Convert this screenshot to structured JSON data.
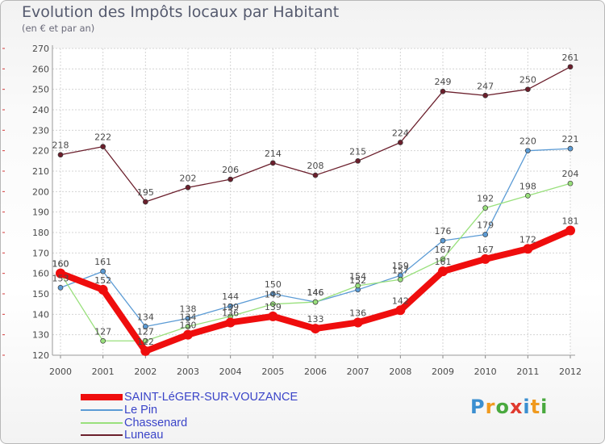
{
  "header": {
    "title": "Evolution des Impôts locaux par Habitant",
    "subtitle": "(en € et par an)"
  },
  "logo": {
    "letters": [
      "P",
      "r",
      "o",
      "x",
      "i",
      "t",
      "i"
    ],
    "colors": [
      "#3b8fd0",
      "#f09a1f",
      "#49a93e",
      "#e03a2f",
      "#3b8fd0",
      "#f09a1f",
      "#49a93e"
    ]
  },
  "chart_data": {
    "type": "line",
    "title": "Evolution des Impôts locaux par Habitant",
    "subtitle": "(en € et par an)",
    "xlabel": "",
    "ylabel": "",
    "ylim": [
      120,
      270
    ],
    "yticks": [
      120,
      130,
      140,
      150,
      160,
      170,
      180,
      190,
      200,
      210,
      220,
      230,
      240,
      250,
      260,
      270
    ],
    "categories": [
      "2000",
      "2001",
      "2002",
      "2003",
      "2004",
      "2005",
      "2006",
      "2007",
      "2008",
      "2009",
      "2010",
      "2011",
      "2012"
    ],
    "grid": true,
    "legend_position": "bottom-left",
    "series": [
      {
        "name": "Luneau",
        "color": "#6b1f2c",
        "values": [
          218,
          222,
          195,
          202,
          206,
          214,
          208,
          215,
          224,
          249,
          247,
          250,
          261
        ],
        "labels": [
          "218",
          "222",
          "195",
          "202",
          "206",
          "214",
          "208",
          "215",
          "224",
          "249",
          "247",
          "250",
          "261"
        ]
      },
      {
        "name": "Le Pin",
        "color": "#5b9bd5",
        "values": [
          153,
          161,
          134,
          138,
          144,
          150,
          146,
          152,
          159,
          176,
          179,
          220,
          221
        ],
        "labels": [
          "153",
          "161",
          "134",
          "138",
          "144",
          "150",
          "146",
          "152",
          "159",
          "176",
          "179",
          "220",
          "221"
        ]
      },
      {
        "name": "Chassenard",
        "color": "#99e07c",
        "values": [
          160,
          127,
          127,
          134,
          139,
          145,
          146,
          154,
          157,
          167,
          192,
          198,
          204
        ],
        "labels": [
          "160",
          "127",
          "127",
          "134",
          "139",
          "145",
          "146",
          "154",
          "157",
          "167",
          "192",
          "198",
          "204"
        ]
      },
      {
        "name": "SAINT-LéGER-SUR-VOUZANCE",
        "color": "#ef0d0d",
        "values": [
          160,
          152,
          122,
          130,
          136,
          139,
          133,
          136,
          142,
          161,
          167,
          172,
          181
        ],
        "labels": [
          "160",
          "152",
          "122",
          "130",
          "136",
          "139",
          "133",
          "136",
          "142",
          "161",
          "167",
          "172",
          "181"
        ]
      }
    ]
  },
  "legend": [
    {
      "name": "SAINT-LéGER-SUR-VOUZANCE",
      "color": "#ef0d0d",
      "weight": 8
    },
    {
      "name": "Le Pin",
      "color": "#5b9bd5",
      "weight": 2
    },
    {
      "name": "Chassenard",
      "color": "#99e07c",
      "weight": 2
    },
    {
      "name": "Luneau",
      "color": "#6b1f2c",
      "weight": 2
    }
  ]
}
